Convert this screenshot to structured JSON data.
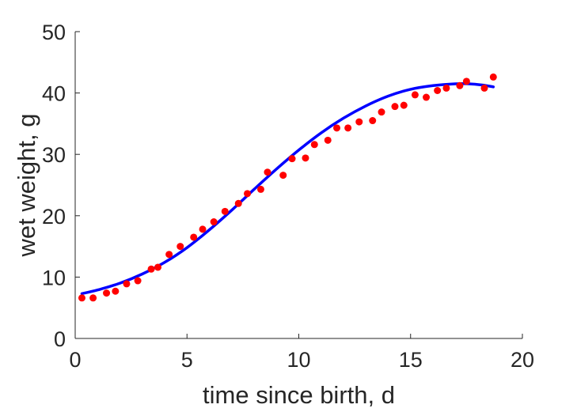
{
  "chart_data": {
    "type": "scatter",
    "title": "",
    "xlabel": "time since birth, d",
    "ylabel": "wet weight, g",
    "xlim": [
      0,
      20
    ],
    "ylim": [
      0,
      50
    ],
    "xticks": [
      0,
      5,
      10,
      15,
      20
    ],
    "yticks": [
      0,
      10,
      20,
      30,
      40,
      50
    ],
    "grid": false,
    "legend": "none",
    "series": [
      {
        "kind": "points",
        "color": "#ff0000",
        "x": [
          0.3,
          0.8,
          1.4,
          1.8,
          2.3,
          2.8,
          3.4,
          3.7,
          4.2,
          4.7,
          5.3,
          5.7,
          6.2,
          6.7,
          7.3,
          7.7,
          8.3,
          8.6,
          9.3,
          9.7,
          10.3,
          10.7,
          11.3,
          11.7,
          12.2,
          12.7,
          13.3,
          13.7,
          14.3,
          14.7,
          15.2,
          15.7,
          16.2,
          16.6,
          17.2,
          17.5,
          18.3,
          18.7
        ],
        "y": [
          6.6,
          6.6,
          7.4,
          7.7,
          8.9,
          9.4,
          11.3,
          11.6,
          13.7,
          15.0,
          16.5,
          17.8,
          19.0,
          20.7,
          22.0,
          23.6,
          24.3,
          27.1,
          26.6,
          29.3,
          29.4,
          31.6,
          32.3,
          34.3,
          34.3,
          35.3,
          35.5,
          36.9,
          37.8,
          38.0,
          39.7,
          39.3,
          40.4,
          40.8,
          41.2,
          41.9,
          40.8,
          42.6
        ]
      },
      {
        "kind": "line",
        "color": "#0000ff",
        "x": [
          0.3,
          1,
          2,
          3,
          4,
          5,
          6,
          7,
          8,
          9,
          10,
          11,
          12,
          13,
          14,
          15,
          16,
          17,
          17.6,
          18.2,
          18.7
        ],
        "y": [
          7.3,
          7.9,
          9.0,
          10.5,
          12.4,
          14.8,
          17.7,
          20.9,
          24.3,
          27.6,
          30.7,
          33.5,
          35.9,
          37.9,
          39.5,
          40.6,
          41.2,
          41.5,
          41.5,
          41.3,
          41.0
        ]
      }
    ]
  },
  "colors": {
    "axis": "#262626",
    "points": "#ff0000",
    "fit_line": "#0000ff"
  }
}
